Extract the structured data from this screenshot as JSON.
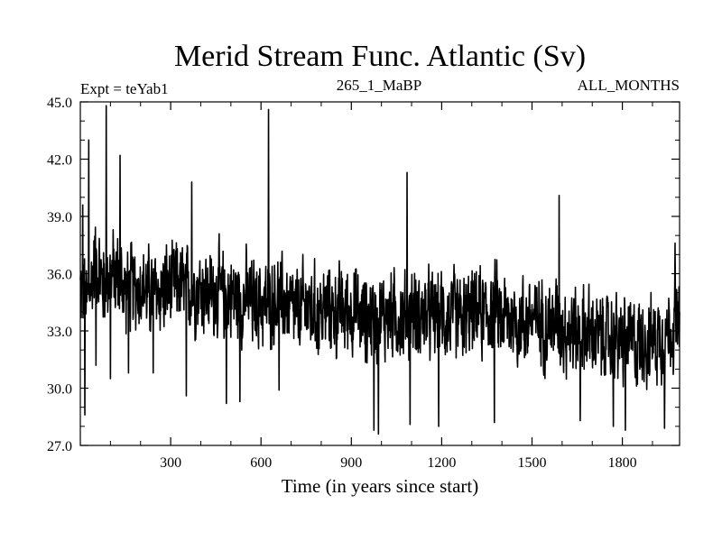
{
  "chart_data": {
    "type": "line",
    "title": "Merid Stream Func. Atlantic (Sv)",
    "subtitle_left": "Expt = teYab1",
    "subtitle_center": "265_1_MaBP",
    "subtitle_right": "ALL_MONTHS",
    "xlabel": "Time (in years since start)",
    "ylabel": "",
    "xlim": [
      0,
      1990
    ],
    "ylim": [
      27.0,
      45.0
    ],
    "x_ticks": [
      300,
      600,
      900,
      1200,
      1500,
      1800
    ],
    "y_ticks": [
      "27.0",
      "30.0",
      "33.0",
      "36.0",
      "39.0",
      "42.0",
      "45.0"
    ],
    "grid": false,
    "series": [
      {
        "x": [
          0,
          25,
          50,
          75,
          100,
          125,
          150,
          175,
          200,
          225,
          250,
          275,
          300,
          325,
          350,
          375,
          400,
          425,
          450,
          475,
          500,
          525,
          550,
          575,
          600,
          625,
          650,
          675,
          700,
          725,
          750,
          775,
          800,
          825,
          850,
          875,
          900,
          925,
          950,
          975,
          1000,
          1025,
          1050,
          1075,
          1100,
          1125,
          1150,
          1175,
          1200,
          1225,
          1250,
          1275,
          1300,
          1325,
          1350,
          1375,
          1400,
          1425,
          1450,
          1475,
          1500,
          1525,
          1550,
          1575,
          1600,
          1625,
          1650,
          1675,
          1700,
          1725,
          1750,
          1775,
          1800,
          1825,
          1850,
          1875,
          1900,
          1925,
          1950,
          1975,
          1990
        ],
        "values": [
          35.2,
          34.5,
          36.8,
          35.4,
          36.0,
          35.9,
          35.1,
          35.2,
          35.4,
          35.0,
          34.9,
          35.3,
          35.1,
          35.6,
          35.0,
          35.3,
          35.2,
          34.9,
          35.1,
          34.8,
          35.0,
          34.6,
          34.8,
          34.4,
          34.5,
          34.3,
          34.6,
          34.5,
          34.2,
          34.0,
          34.3,
          34.1,
          34.0,
          34.2,
          33.9,
          34.0,
          34.1,
          33.8,
          33.6,
          33.8,
          33.7,
          33.9,
          33.8,
          33.6,
          34.0,
          33.9,
          33.8,
          33.7,
          33.9,
          33.7,
          33.8,
          33.6,
          33.9,
          34.0,
          33.9,
          34.1,
          33.8,
          33.7,
          33.6,
          33.5,
          33.7,
          33.6,
          33.4,
          33.5,
          33.3,
          33.1,
          32.9,
          33.0,
          32.8,
          32.6,
          32.5,
          32.7,
          32.4,
          32.5,
          32.3,
          32.6,
          32.4,
          32.8,
          33.0,
          33.2,
          33.5
        ],
        "noise_amplitude": 2.3,
        "peaks": [
          {
            "x": 8,
            "y": 39.6
          },
          {
            "x": 15,
            "y": 28.6
          },
          {
            "x": 28,
            "y": 43.0
          },
          {
            "x": 52,
            "y": 31.2
          },
          {
            "x": 86,
            "y": 44.8
          },
          {
            "x": 100,
            "y": 30.5
          },
          {
            "x": 132,
            "y": 42.2
          },
          {
            "x": 160,
            "y": 30.8
          },
          {
            "x": 242,
            "y": 30.8
          },
          {
            "x": 352,
            "y": 29.6
          },
          {
            "x": 370,
            "y": 40.8
          },
          {
            "x": 485,
            "y": 29.2
          },
          {
            "x": 530,
            "y": 29.3
          },
          {
            "x": 625,
            "y": 44.6
          },
          {
            "x": 660,
            "y": 29.9
          },
          {
            "x": 975,
            "y": 27.8
          },
          {
            "x": 990,
            "y": 27.6
          },
          {
            "x": 1085,
            "y": 41.3
          },
          {
            "x": 1095,
            "y": 28.1
          },
          {
            "x": 1190,
            "y": 28.0
          },
          {
            "x": 1375,
            "y": 28.2
          },
          {
            "x": 1590,
            "y": 40.1
          },
          {
            "x": 1660,
            "y": 28.3
          },
          {
            "x": 1770,
            "y": 28.0
          },
          {
            "x": 1810,
            "y": 27.8
          },
          {
            "x": 1940,
            "y": 27.9
          },
          {
            "x": 1975,
            "y": 37.6
          }
        ]
      }
    ]
  }
}
